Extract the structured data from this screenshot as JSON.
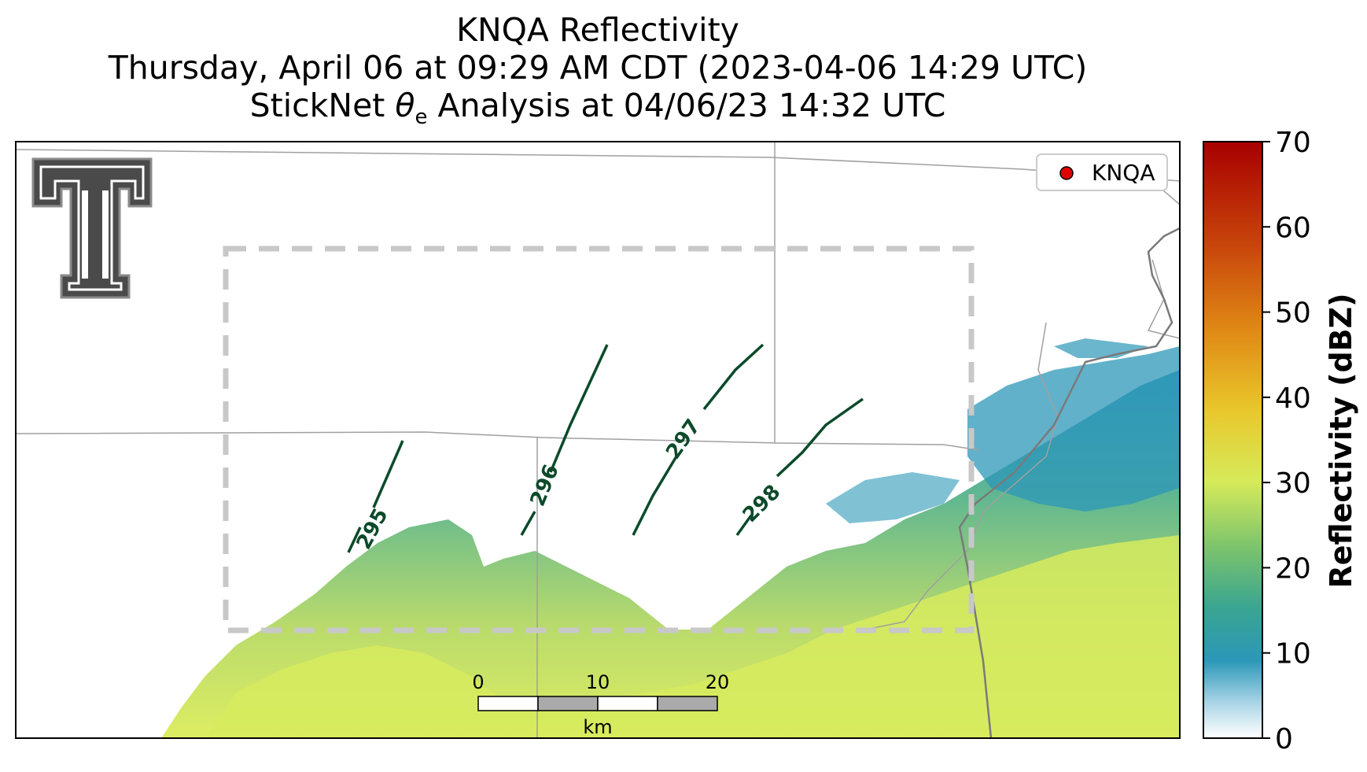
{
  "title": {
    "line1": "KNQA Reflectivity",
    "line2": "Thursday, April 06 at 09:29 AM CDT (2023-04-06 14:29 UTC)",
    "line3_prefix": "StickNet ",
    "line3_symbol": "θ",
    "line3_subscript": "e",
    "line3_suffix": " Analysis at 04/06/23 14:32 UTC"
  },
  "legend": {
    "label": "KNQA",
    "marker_color": "#e00000"
  },
  "colorbar": {
    "label": "Reflectivity (dBZ)",
    "ticks": [
      "0",
      "10",
      "20",
      "30",
      "40",
      "50",
      "60",
      "70"
    ],
    "range": [
      0,
      70
    ],
    "colors": [
      "#ffffff",
      "#4aa7c9",
      "#1f8fae",
      "#5bb37a",
      "#b9d95a",
      "#f0e23a",
      "#e8a21a",
      "#c8560a",
      "#b00000"
    ]
  },
  "contours": {
    "labels": [
      "295",
      "296",
      "297",
      "298"
    ],
    "color": "#0b4a2a"
  },
  "scalebar": {
    "ticks": [
      "0",
      "10",
      "20"
    ],
    "unit": "km"
  },
  "logo": {
    "name": "Texas Tech double-T logo"
  },
  "colors": {
    "analysis_box": "#c8c8c8",
    "state_borders": "#a0a0a0",
    "river": "#808080"
  }
}
